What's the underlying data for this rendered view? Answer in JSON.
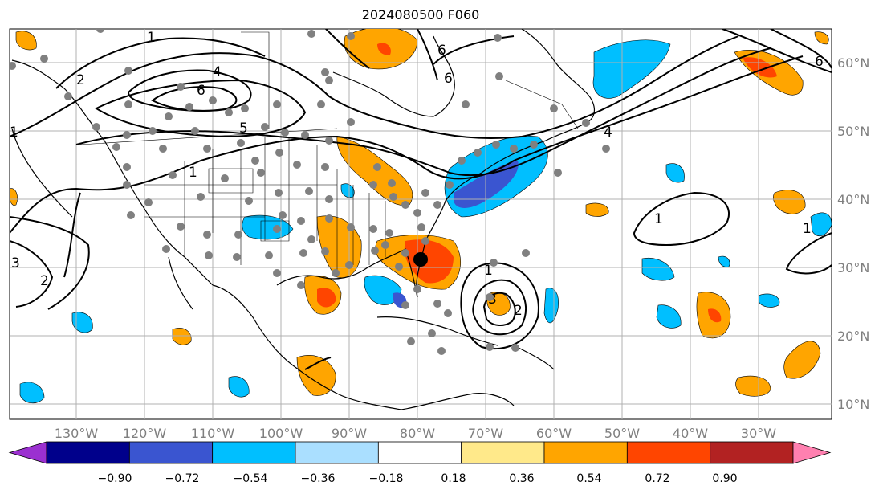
{
  "title": "2024080500 F060",
  "axes": {
    "lon_labels": [
      "130°W",
      "120°W",
      "110°W",
      "100°W",
      "90°W",
      "80°W",
      "70°W",
      "60°W",
      "50°W",
      "40°W",
      "30°W"
    ],
    "lat_labels": [
      "60°N",
      "50°N",
      "40°N",
      "30°N",
      "20°N",
      "10°N"
    ]
  },
  "colorbar": {
    "ticks": [
      "−0.90",
      "−0.72",
      "−0.54",
      "−0.36",
      "−0.18",
      "0.18",
      "0.36",
      "0.54",
      "0.72",
      "0.90"
    ],
    "colors": [
      "#9b30d0",
      "#00008b",
      "#3a55d0",
      "#00bfff",
      "#aadfff",
      "#ffffff",
      "#ffe98a",
      "#ffa500",
      "#ff4500",
      "#b22222",
      "#ff80b0"
    ]
  },
  "contour_labels": [
    "1",
    "2",
    "4",
    "6",
    "5",
    "1",
    "1",
    "6",
    "6",
    "4",
    "1",
    "3",
    "2",
    "1",
    "3",
    "2",
    "1",
    "6"
  ],
  "colors": {
    "orange": "#ffa500",
    "red": "#ff4500",
    "sky": "#00bfff",
    "blue": "#3a55d0",
    "station": "#808080",
    "marker": "#000000"
  }
}
